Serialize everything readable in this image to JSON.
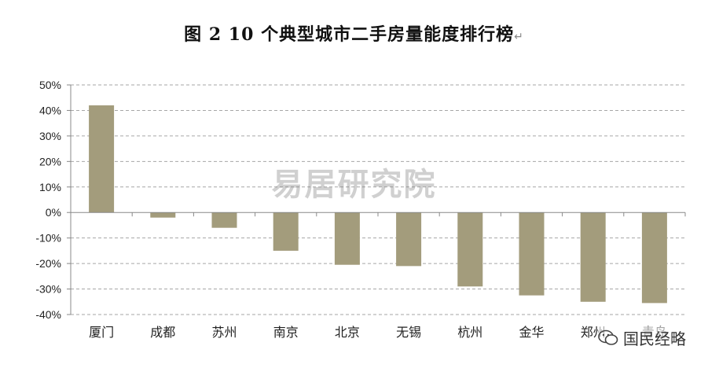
{
  "title": "图 2   10 个典型城市二手房量能度排行榜",
  "title_mark": "↵",
  "watermark": "易居研究院",
  "badge_text": "国民经略",
  "colors": {
    "bar": "#a39c7c",
    "grid": "#a6a6a6",
    "axis": "#888888"
  },
  "chart_data": {
    "type": "bar",
    "categories": [
      "厦门",
      "成都",
      "苏州",
      "南京",
      "北京",
      "无锡",
      "杭州",
      "金华",
      "郑州",
      "青岛"
    ],
    "values": [
      0.42,
      -0.02,
      -0.06,
      -0.15,
      -0.205,
      -0.21,
      -0.29,
      -0.325,
      -0.35,
      -0.355
    ],
    "ylim": [
      -0.4,
      0.5
    ],
    "yticks": [
      "50%",
      "40%",
      "30%",
      "20%",
      "10%",
      "0%",
      "-10%",
      "-20%",
      "-30%",
      "-40%"
    ],
    "ytick_values": [
      0.5,
      0.4,
      0.3,
      0.2,
      0.1,
      0,
      -0.1,
      -0.2,
      -0.3,
      -0.4
    ],
    "grid": true,
    "legend": "none"
  }
}
